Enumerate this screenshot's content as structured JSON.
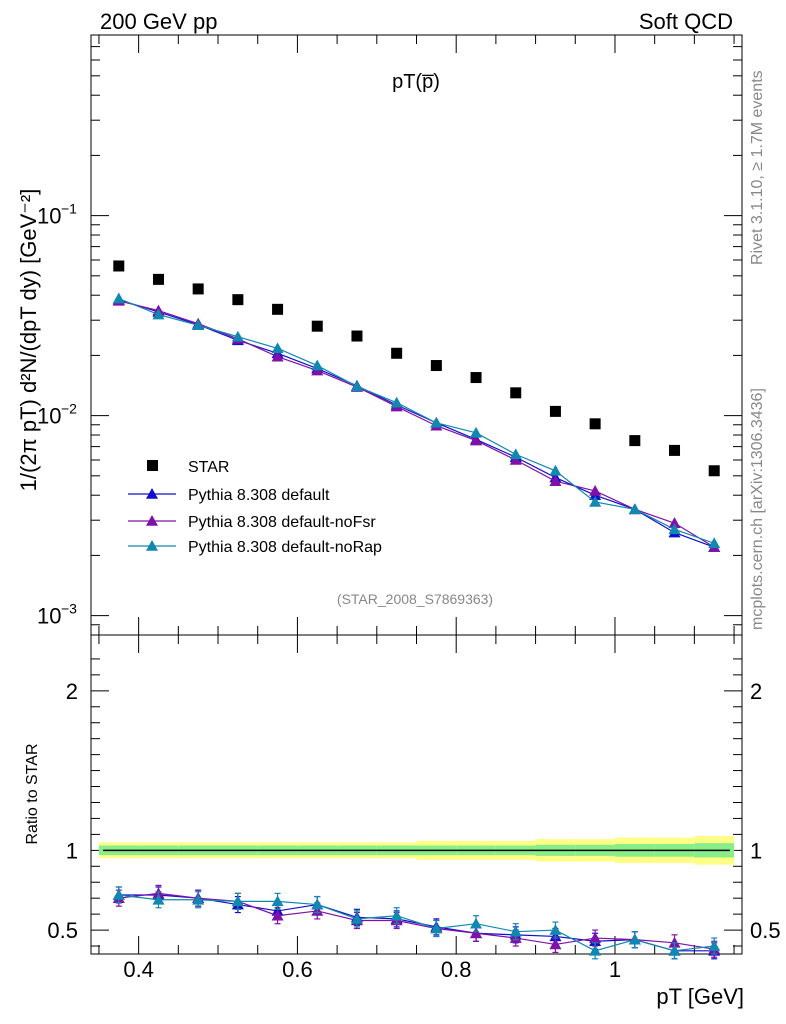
{
  "header": {
    "left": "200 GeV pp",
    "right": "Soft QCD"
  },
  "side": {
    "rivet": "Rivet 3.1.10, ≥ 1.7M events",
    "source": "mcplots.cern.ch [arXiv:1306.3436]"
  },
  "chart_data": [
    {
      "type": "scatter",
      "title": "pT(p̅)",
      "xlabel": "pT [GeV]",
      "ylabel": "1/(2π pT) d²N/(dpT dy) [GeV⁻²]",
      "yscale": "log",
      "ylim": [
        0.0008,
        0.8
      ],
      "xlim": [
        0.34,
        1.16
      ],
      "analysis_label": "(STAR_2008_S7869363)",
      "legend_position": "bottom-left",
      "x": [
        0.375,
        0.425,
        0.475,
        0.525,
        0.575,
        0.625,
        0.675,
        0.725,
        0.775,
        0.825,
        0.875,
        0.925,
        0.975,
        1.025,
        1.075,
        1.125
      ],
      "series": [
        {
          "name": "STAR",
          "marker": "square",
          "color": "#000000",
          "values": [
            0.056,
            0.048,
            0.043,
            0.038,
            0.034,
            0.028,
            0.025,
            0.0205,
            0.0178,
            0.0155,
            0.013,
            0.0105,
            0.0091,
            0.0075,
            0.0067,
            0.0053
          ]
        },
        {
          "name": "Pythia 8.308 default",
          "marker": "triangle",
          "color": "#1010cc",
          "values": [
            0.038,
            0.033,
            0.0285,
            0.0238,
            0.0205,
            0.0172,
            0.0141,
            0.0113,
            0.0092,
            0.0076,
            0.0062,
            0.0049,
            0.004,
            0.0034,
            0.0026,
            0.0022
          ]
        },
        {
          "name": "Pythia 8.308 default-noFsr",
          "marker": "triangle",
          "color": "#8010a8",
          "values": [
            0.0375,
            0.0335,
            0.0288,
            0.0242,
            0.0197,
            0.0168,
            0.0139,
            0.0111,
            0.0089,
            0.0075,
            0.006,
            0.0047,
            0.0042,
            0.0034,
            0.0029,
            0.0022
          ]
        },
        {
          "name": "Pythia 8.308 default-noRap",
          "marker": "triangle",
          "color": "#1088b0",
          "values": [
            0.0385,
            0.032,
            0.0283,
            0.0248,
            0.0217,
            0.0178,
            0.014,
            0.0116,
            0.0092,
            0.0082,
            0.0064,
            0.0053,
            0.0037,
            0.0034,
            0.0027,
            0.0023
          ]
        }
      ]
    },
    {
      "type": "scatter",
      "ylabel": "Ratio to STAR",
      "xlabel": "pT [GeV]",
      "ylim": [
        0.35,
        2.35
      ],
      "reference": 1.0,
      "band_inner": 0.03,
      "band_outer": [
        0.05,
        0.05,
        0.05,
        0.05,
        0.05,
        0.05,
        0.05,
        0.05,
        0.06,
        0.06,
        0.06,
        0.07,
        0.07,
        0.08,
        0.08,
        0.09
      ],
      "series": [
        {
          "name": "Pythia 8.308 default",
          "color": "#1010cc",
          "values": [
            0.72,
            0.72,
            0.7,
            0.66,
            0.62,
            0.66,
            0.58,
            0.57,
            0.52,
            0.48,
            0.47,
            0.46,
            0.43,
            0.44,
            0.37,
            0.37
          ]
        },
        {
          "name": "Pythia 8.308 default-noFsr",
          "color": "#8010a8",
          "values": [
            0.7,
            0.73,
            0.7,
            0.68,
            0.59,
            0.62,
            0.56,
            0.56,
            0.51,
            0.48,
            0.45,
            0.41,
            0.45,
            0.44,
            0.42,
            0.38
          ]
        },
        {
          "name": "Pythia 8.308 default-noRap",
          "color": "#1088b0",
          "values": [
            0.72,
            0.69,
            0.69,
            0.68,
            0.68,
            0.66,
            0.57,
            0.59,
            0.51,
            0.54,
            0.49,
            0.5,
            0.37,
            0.44,
            0.37,
            0.4
          ]
        }
      ]
    }
  ],
  "ticks": {
    "upper_y": [
      "10",
      "−3",
      "10",
      "−2",
      "10",
      "−1"
    ],
    "lower_y": [
      "2",
      "1",
      "0.5"
    ],
    "x": [
      "0.4",
      "0.6",
      "0.8",
      "1"
    ]
  }
}
